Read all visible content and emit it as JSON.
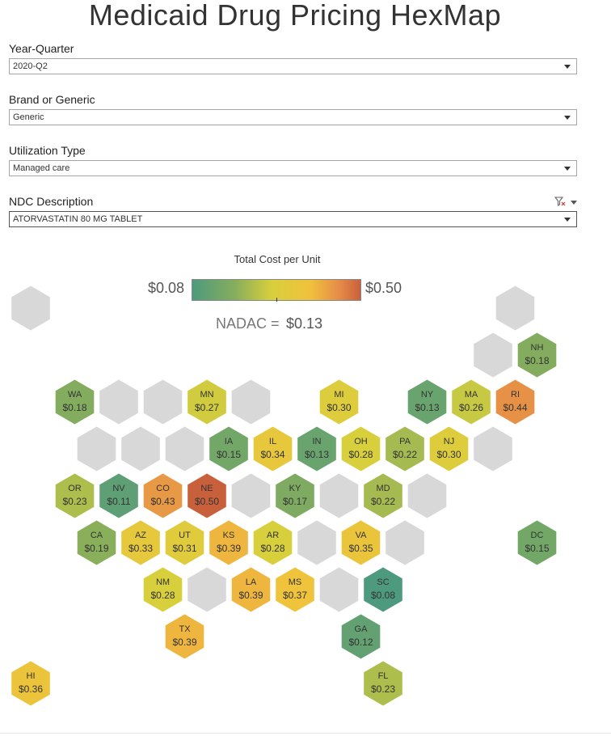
{
  "title": "Medicaid Drug Pricing HexMap",
  "filters": {
    "year_quarter": {
      "label": "Year-Quarter",
      "value": "2020-Q2"
    },
    "brand_generic": {
      "label": "Brand or Generic",
      "value": "Generic"
    },
    "utilization": {
      "label": "Utilization Type",
      "value": "Managed care"
    },
    "ndc": {
      "label": "NDC Description",
      "value": "ATORVASTATIN 80 MG TABLET"
    }
  },
  "legend": {
    "title": "Total Cost per Unit",
    "min_label": "$0.08",
    "max_label": "$0.50",
    "min": 0.08,
    "max": 0.5,
    "nadac_label": "NADAC =",
    "nadac_value": "$0.13"
  },
  "chart_data": {
    "type": "heatmap",
    "title": "Total Cost per Unit",
    "empty_color": "#d8d8d8",
    "states": [
      {
        "state": "NH",
        "value": 0.18,
        "label": "$0.18",
        "row": 1,
        "col": 11
      },
      {
        "state": "WA",
        "value": 0.18,
        "label": "$0.18",
        "row": 2,
        "col": 1
      },
      {
        "state": "MN",
        "value": 0.27,
        "label": "$0.27",
        "row": 2,
        "col": 4
      },
      {
        "state": "MI",
        "value": 0.3,
        "label": "$0.30",
        "row": 2,
        "col": 7
      },
      {
        "state": "NY",
        "value": 0.13,
        "label": "$0.13",
        "row": 2,
        "col": 9
      },
      {
        "state": "MA",
        "value": 0.26,
        "label": "$0.26",
        "row": 2,
        "col": 10
      },
      {
        "state": "RI",
        "value": 0.44,
        "label": "$0.44",
        "row": 2,
        "col": 11
      },
      {
        "state": "IA",
        "value": 0.15,
        "label": "$0.15",
        "row": 3,
        "col": 4
      },
      {
        "state": "IL",
        "value": 0.34,
        "label": "$0.34",
        "row": 3,
        "col": 5
      },
      {
        "state": "IN",
        "value": 0.13,
        "label": "$0.13",
        "row": 3,
        "col": 6
      },
      {
        "state": "OH",
        "value": 0.28,
        "label": "$0.28",
        "row": 3,
        "col": 7
      },
      {
        "state": "PA",
        "value": 0.22,
        "label": "$0.22",
        "row": 3,
        "col": 8
      },
      {
        "state": "NJ",
        "value": 0.3,
        "label": "$0.30",
        "row": 3,
        "col": 9
      },
      {
        "state": "OR",
        "value": 0.23,
        "label": "$0.23",
        "row": 4,
        "col": 1
      },
      {
        "state": "NV",
        "value": 0.11,
        "label": "$0.11",
        "row": 4,
        "col": 2
      },
      {
        "state": "CO",
        "value": 0.43,
        "label": "$0.43",
        "row": 4,
        "col": 3
      },
      {
        "state": "NE",
        "value": 0.5,
        "label": "$0.50",
        "row": 4,
        "col": 4
      },
      {
        "state": "KY",
        "value": 0.17,
        "label": "$0.17",
        "row": 4,
        "col": 6
      },
      {
        "state": "MD",
        "value": 0.22,
        "label": "$0.22",
        "row": 4,
        "col": 8
      },
      {
        "state": "CA",
        "value": 0.19,
        "label": "$0.19",
        "row": 5,
        "col": 1
      },
      {
        "state": "AZ",
        "value": 0.33,
        "label": "$0.33",
        "row": 5,
        "col": 2
      },
      {
        "state": "UT",
        "value": 0.31,
        "label": "$0.31",
        "row": 5,
        "col": 3
      },
      {
        "state": "KS",
        "value": 0.39,
        "label": "$0.39",
        "row": 5,
        "col": 4
      },
      {
        "state": "AR",
        "value": 0.28,
        "label": "$0.28",
        "row": 5,
        "col": 5
      },
      {
        "state": "VA",
        "value": 0.35,
        "label": "$0.35",
        "row": 5,
        "col": 7
      },
      {
        "state": "DC",
        "value": 0.15,
        "label": "$0.15",
        "row": 5,
        "col": 11
      },
      {
        "state": "NM",
        "value": 0.28,
        "label": "$0.28",
        "row": 6,
        "col": 3
      },
      {
        "state": "LA",
        "value": 0.39,
        "label": "$0.39",
        "row": 6,
        "col": 5
      },
      {
        "state": "MS",
        "value": 0.37,
        "label": "$0.37",
        "row": 6,
        "col": 6
      },
      {
        "state": "SC",
        "value": 0.08,
        "label": "$0.08",
        "row": 6,
        "col": 8
      },
      {
        "state": "TX",
        "value": 0.39,
        "label": "$0.39",
        "row": 7,
        "col": 3
      },
      {
        "state": "GA",
        "value": 0.12,
        "label": "$0.12",
        "row": 7,
        "col": 7
      },
      {
        "state": "HI",
        "value": 0.36,
        "label": "$0.36",
        "row": 8,
        "col": 0
      },
      {
        "state": "FL",
        "value": 0.23,
        "label": "$0.23",
        "row": 8,
        "col": 8
      }
    ],
    "empty_cells": [
      {
        "row": 0,
        "col": 0
      },
      {
        "row": 0,
        "col": 11
      },
      {
        "row": 1,
        "col": 10
      },
      {
        "row": 2,
        "col": 2
      },
      {
        "row": 2,
        "col": 3
      },
      {
        "row": 2,
        "col": 5
      },
      {
        "row": 3,
        "col": 1
      },
      {
        "row": 3,
        "col": 2
      },
      {
        "row": 3,
        "col": 3
      },
      {
        "row": 3,
        "col": 10
      },
      {
        "row": 4,
        "col": 5
      },
      {
        "row": 4,
        "col": 7
      },
      {
        "row": 4,
        "col": 9
      },
      {
        "row": 5,
        "col": 6
      },
      {
        "row": 5,
        "col": 8
      },
      {
        "row": 6,
        "col": 4
      },
      {
        "row": 6,
        "col": 7
      }
    ]
  }
}
